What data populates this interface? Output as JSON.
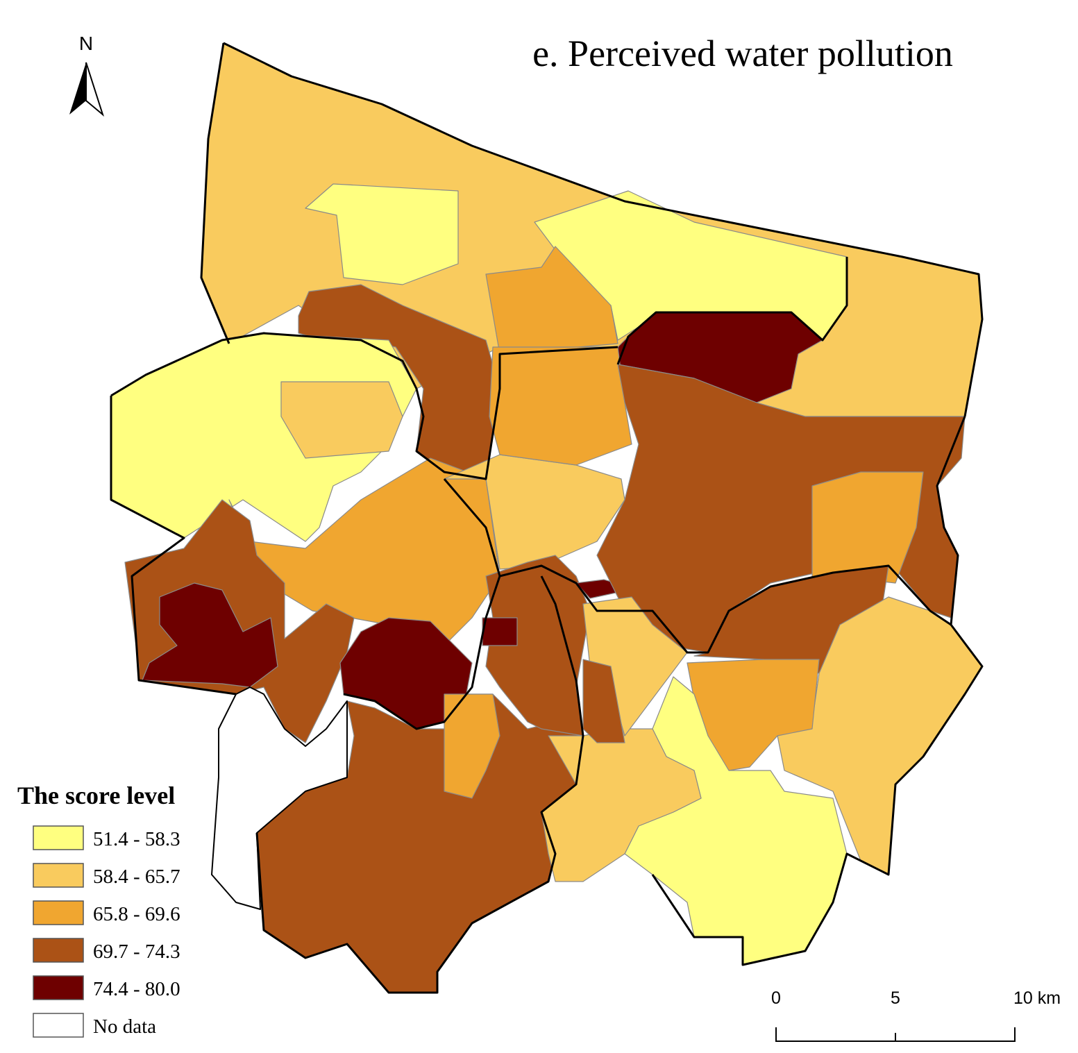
{
  "title": "e. Perceived water pollution",
  "north_arrow": {
    "label": "N"
  },
  "legend": {
    "title": "The score level",
    "items": [
      {
        "label": "51.4 - 58.3",
        "color": "#ffff80"
      },
      {
        "label": "58.4 - 65.7",
        "color": "#f9cb5e"
      },
      {
        "label": "65.8 - 69.6",
        "color": "#f0a630"
      },
      {
        "label": "69.7 - 74.3",
        "color": "#ab5216"
      },
      {
        "label": "74.4 - 80.0",
        "color": "#6e0000"
      },
      {
        "label": "No data",
        "color": "#ffffff"
      }
    ]
  },
  "scale_bar": {
    "labels": [
      "0",
      "5",
      "10 km"
    ]
  }
}
